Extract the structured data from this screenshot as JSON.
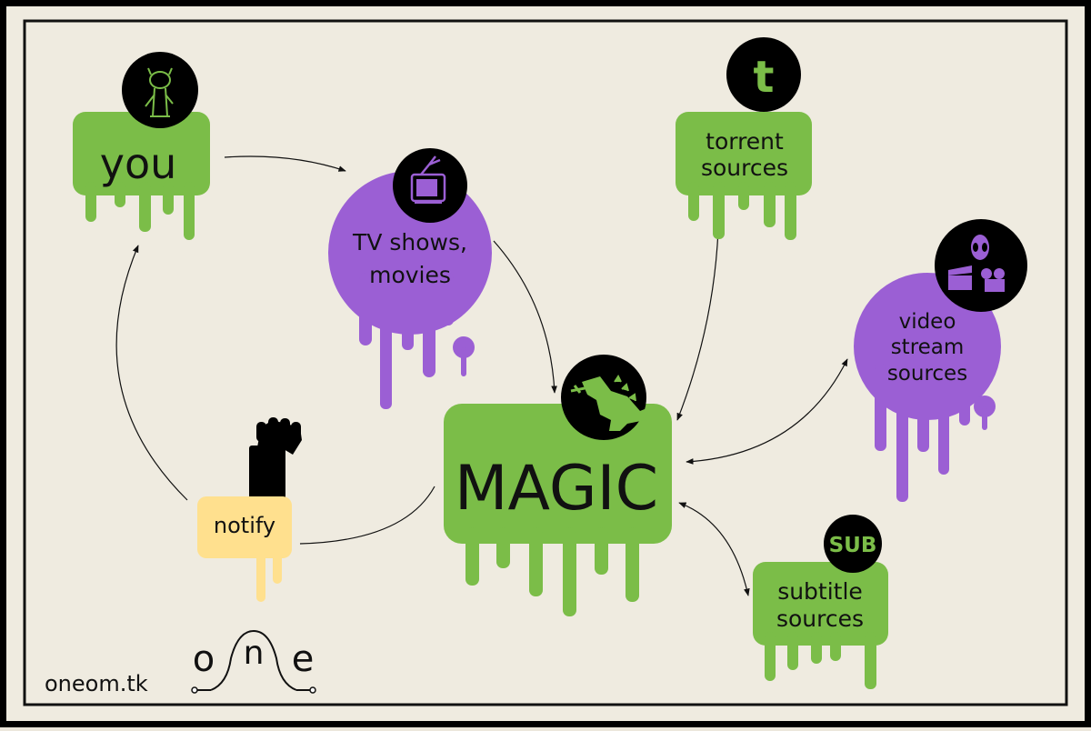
{
  "colors": {
    "background": "#efebe0",
    "frame": "#111111",
    "green": "#7bbd48",
    "purple": "#9b5fd4",
    "yellow": "#ffe08e",
    "icon_circle": "#000000",
    "text": "#111111"
  },
  "nodes": {
    "you": {
      "label": "you",
      "icon": "cartoon-character-icon"
    },
    "tv": {
      "label_line1": "TV shows,",
      "label_line2": "movies",
      "icon": "tv-icon"
    },
    "torrent": {
      "label_line1": "torrent",
      "label_line2": "sources",
      "icon_text": "t"
    },
    "video": {
      "label_line1": "video",
      "label_line2": "stream",
      "label_line3": "sources",
      "icon": "alien-clapperboard-projector-icon"
    },
    "magic": {
      "label": "MAGIC",
      "icon": "godzilla-icon"
    },
    "subtitle": {
      "label_line1": "subtitle",
      "label_line2": "sources",
      "icon_text": "SUB"
    },
    "notify": {
      "label": "notify",
      "icon": "raised-fist-icon"
    }
  },
  "logo": {
    "letters": [
      "o",
      "n",
      "e"
    ],
    "name": "one-logo"
  },
  "footer": {
    "site": "oneom.tk"
  }
}
